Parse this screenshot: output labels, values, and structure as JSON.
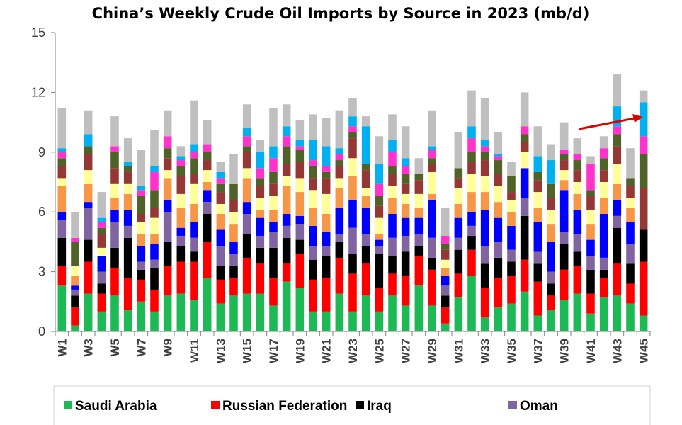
{
  "chart_data": {
    "type": "bar",
    "stacked": true,
    "title": "China’s Weekly Crude Oil Imports by Source in 2023 (mb/d)",
    "xlabel": "",
    "ylabel": "",
    "ylim": [
      0,
      15
    ],
    "yticks": [
      "0",
      "3",
      "6",
      "9",
      "12",
      "15"
    ],
    "grid": false,
    "legend_position": "bottom",
    "annotation": "red arrow pointing up-right near W41–W45",
    "categories": [
      "W1",
      "W2",
      "W3",
      "W4",
      "W5",
      "W6",
      "W7",
      "W8",
      "W9",
      "W10",
      "W11",
      "W12",
      "W13",
      "W14",
      "W15",
      "W16",
      "W17",
      "W18",
      "W19",
      "W20",
      "W21",
      "W22",
      "W23",
      "W24",
      "W25",
      "W26",
      "W27",
      "W28",
      "W29",
      "W30",
      "W31",
      "W32",
      "W33",
      "W34",
      "W35",
      "W36",
      "W37",
      "W38",
      "W39",
      "W40",
      "W41",
      "W42",
      "W43",
      "W44",
      "W45"
    ],
    "xtick_labels": [
      "W1",
      "W3",
      "W5",
      "W7",
      "W9",
      "W11",
      "W13",
      "W15",
      "W17",
      "W19",
      "W21",
      "W23",
      "W25",
      "W27",
      "W29",
      "W31",
      "W33",
      "W35",
      "W37",
      "W39",
      "W41",
      "W43",
      "W45"
    ],
    "series": [
      {
        "name": "Saudi Arabia",
        "color": "#1db954",
        "legend": true,
        "values": [
          2.3,
          0.3,
          1.9,
          1.0,
          1.8,
          1.1,
          1.5,
          1.0,
          1.8,
          1.9,
          1.6,
          2.7,
          1.4,
          1.8,
          1.9,
          1.9,
          1.3,
          2.5,
          2.2,
          1.0,
          1.0,
          1.9,
          1.0,
          1.8,
          1.0,
          1.8,
          1.3,
          2.3,
          1.3,
          0.4,
          1.7,
          2.8,
          0.7,
          1.2,
          1.4,
          2.0,
          0.8,
          1.1,
          1.6,
          1.9,
          0.9,
          1.7,
          1.8,
          1.4,
          0.8
        ]
      },
      {
        "name": "Russian Federation",
        "color": "#ff0000",
        "legend": true,
        "values": [
          1.0,
          0.9,
          1.6,
          0.9,
          1.4,
          1.6,
          1.1,
          1.1,
          1.5,
          1.6,
          1.9,
          1.8,
          1.2,
          0.9,
          1.8,
          1.5,
          1.4,
          0.9,
          1.7,
          1.6,
          1.7,
          1.8,
          1.9,
          1.6,
          1.2,
          1.1,
          1.5,
          1.5,
          1.8,
          0.8,
          1.2,
          1.3,
          1.5,
          1.5,
          1.4,
          1.6,
          1.7,
          0.7,
          1.5,
          1.4,
          1.0,
          1.0,
          1.6,
          1.0,
          2.7
        ]
      },
      {
        "name": "Iraq",
        "color": "#000000",
        "legend": true,
        "values": [
          1.4,
          0.6,
          1.1,
          0.5,
          1.0,
          2.0,
          0.5,
          1.1,
          1.2,
          0.8,
          0.5,
          1.4,
          0.7,
          0.6,
          1.2,
          0.8,
          1.5,
          1.3,
          0.7,
          1.0,
          1.1,
          0.8,
          1.0,
          0.9,
          1.7,
          0.9,
          1.2,
          0.5,
          0.6,
          0.6,
          1.2,
          0.7,
          1.2,
          1.0,
          0.7,
          2.2,
          0.9,
          0.6,
          1.3,
          0.7,
          1.2,
          0.4,
          1.8,
          1.0,
          1.6
        ]
      },
      {
        "name": "Oman",
        "color": "#8064a2",
        "legend": true,
        "values": [
          0.9,
          0.3,
          1.6,
          0.6,
          1.3,
          0.6,
          0.4,
          0.4,
          1.5,
          0.5,
          0.7,
          0.6,
          1.0,
          0.6,
          1.0,
          0.6,
          0.8,
          0.6,
          0.8,
          0.7,
          0.5,
          0.4,
          1.3,
          0.6,
          0.4,
          0.9,
          0.8,
          0.6,
          1.0,
          0.5,
          0.6,
          0.5,
          0.9,
          0.8,
          0.6,
          0.9,
          0.6,
          0.6,
          0.6,
          0.9,
          0.7,
          0.6,
          0.6,
          1.0,
          0.0
        ]
      },
      {
        "name": "Blue",
        "color": "#0000ff",
        "legend": false,
        "values": [
          0.4,
          0.2,
          0.3,
          0.8,
          0.6,
          0.8,
          0.8,
          0.8,
          0.6,
          0.4,
          0.8,
          0.6,
          0.8,
          0.6,
          0.6,
          0.9,
          0.5,
          0.6,
          0.4,
          1.0,
          0.7,
          1.3,
          1.4,
          1.3,
          0.3,
          1.2,
          0.9,
          0.8,
          1.9,
          0.5,
          1.0,
          0.7,
          1.8,
          1.2,
          1.2,
          1.5,
          1.5,
          1.5,
          2.1,
          1.2,
          0.8,
          2.2,
          0.8,
          1.1,
          0.0
        ]
      },
      {
        "name": "Light orange",
        "color": "#f79646",
        "legend": false,
        "values": [
          1.3,
          0.5,
          0.9,
          0.0,
          0.6,
          0.8,
          0.6,
          0.5,
          1.1,
          1.0,
          0.9,
          0.4,
          0.8,
          0.9,
          1.2,
          0.4,
          0.6,
          1.4,
          1.2,
          0.9,
          0.9,
          1.0,
          1.2,
          0.6,
          0.3,
          0.8,
          0.7,
          0.5,
          0.3,
          0.4,
          0.7,
          1.0,
          0.9,
          0.8,
          0.7,
          0.0,
          0.7,
          0.9,
          0.5,
          0.8,
          0.8,
          0.8,
          0.8,
          0.7,
          0.0
        ]
      },
      {
        "name": "Light yellow",
        "color": "#ffff99",
        "legend": false,
        "values": [
          0.4,
          0.5,
          0.7,
          0.4,
          0.7,
          0.5,
          0.6,
          0.8,
          0.4,
          0.7,
          1.0,
          0.6,
          0.5,
          0.6,
          0.5,
          0.6,
          0.7,
          0.5,
          0.7,
          0.9,
          1.0,
          0.5,
          0.9,
          0.4,
          0.8,
          0.6,
          0.5,
          0.7,
          1.1,
          0.4,
          0.8,
          0.9,
          0.8,
          0.8,
          0.6,
          0.8,
          0.8,
          0.7,
          0.5,
          0.6,
          0.7,
          0.8,
          1.0,
          0.5,
          0.0
        ]
      },
      {
        "name": "Dark red",
        "color": "#953735",
        "legend": false,
        "values": [
          0.6,
          0.0,
          0.8,
          0.7,
          0.8,
          0.6,
          0.4,
          0.5,
          0.6,
          0.9,
          0.5,
          0.5,
          0.6,
          0.6,
          0.8,
          0.6,
          0.6,
          0.6,
          0.8,
          0.6,
          0.8,
          0.6,
          1.0,
          0.9,
          0.6,
          0.6,
          0.5,
          0.7,
          0.4,
          0.5,
          0.5,
          0.6,
          0.8,
          0.6,
          0.4,
          0.5,
          0.6,
          0.6,
          0.5,
          0.6,
          0.7,
          0.6,
          0.9,
          0.6,
          2.1
        ]
      },
      {
        "name": "Olive green",
        "color": "#4f6228",
        "legend": false,
        "values": [
          0.4,
          1.2,
          0.4,
          0.3,
          0.8,
          0.3,
          0.9,
          0.9,
          0.5,
          0.5,
          0.8,
          0.4,
          0.4,
          0.8,
          0.3,
          0.4,
          0.6,
          0.9,
          0.6,
          0.6,
          0.3,
          0.3,
          0.3,
          0.3,
          0.5,
          0.4,
          0.5,
          0.3,
          0.3,
          0.3,
          0.5,
          0.5,
          0.4,
          0.7,
          0.8,
          0.4,
          0.4,
          0.7,
          0.3,
          0.5,
          0.3,
          0.6,
          0.6,
          0.4,
          1.7
        ]
      },
      {
        "name": "Magenta",
        "color": "#ff33cc",
        "legend": false,
        "values": [
          0.3,
          0.2,
          0.0,
          0.3,
          0.3,
          0.0,
          0.3,
          0.9,
          0.6,
          0.3,
          0.3,
          0.4,
          0.3,
          0.0,
          0.5,
          0.5,
          0.7,
          0.5,
          0.2,
          0.3,
          0.3,
          0.3,
          0.3,
          0.0,
          0.6,
          0.7,
          0.4,
          0.0,
          0.4,
          0.4,
          0.0,
          0.7,
          0.3,
          0.2,
          0.0,
          0.4,
          0.0,
          0.0,
          0.2,
          0.3,
          1.3,
          0.5,
          0.4,
          0.0,
          0.9
        ]
      },
      {
        "name": "Sky blue",
        "color": "#00b0f0",
        "legend": false,
        "values": [
          0.2,
          0.0,
          0.6,
          0.2,
          0.0,
          0.2,
          0.2,
          0.3,
          0.0,
          0.2,
          0.4,
          0.0,
          0.3,
          0.0,
          0.4,
          0.8,
          0.6,
          0.5,
          0.3,
          1.0,
          1.0,
          0.3,
          0.5,
          1.9,
          1.0,
          0.6,
          0.4,
          0.0,
          0.2,
          0.0,
          0.0,
          0.6,
          0.3,
          0.1,
          0.0,
          0.0,
          0.8,
          1.2,
          0.0,
          0.0,
          0.0,
          0.0,
          1.0,
          0.0,
          1.7
        ]
      },
      {
        "name": "Gray",
        "color": "#bfbfbf",
        "legend": false,
        "values": [
          2.0,
          1.3,
          1.2,
          1.3,
          1.5,
          1.2,
          1.8,
          1.8,
          1.3,
          0.5,
          2.2,
          1.2,
          0.5,
          1.5,
          1.2,
          0.6,
          1.9,
          1.1,
          1.0,
          1.3,
          1.4,
          1.9,
          0.9,
          0.5,
          1.4,
          1.3,
          1.6,
          0.8,
          1.8,
          1.4,
          1.8,
          1.8,
          2.1,
          1.1,
          0.7,
          1.7,
          1.5,
          0.8,
          1.4,
          0.8,
          0.4,
          0.6,
          1.6,
          1.5,
          0.6
        ]
      }
    ]
  }
}
